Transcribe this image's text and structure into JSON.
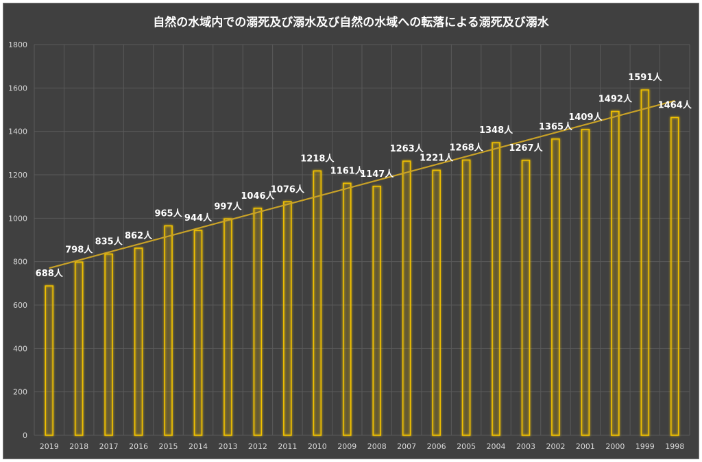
{
  "chart_data": {
    "type": "bar",
    "title": "自然の水域内での溺死及び溺水及び自然の水域への転落による溺死及び溺水",
    "xlabel": "",
    "ylabel": "",
    "ylim": [
      0,
      1800
    ],
    "yticks": [
      0,
      200,
      400,
      600,
      800,
      1000,
      1200,
      1400,
      1600,
      1800
    ],
    "grid": true,
    "trendline": "linear",
    "label_suffix": "人",
    "colors": {
      "background": "#404040",
      "bar_edge": "#f2c200",
      "trend": "#c9a227",
      "grid": "#5a5a5a"
    },
    "categories": [
      "2019",
      "2018",
      "2017",
      "2016",
      "2015",
      "2014",
      "2013",
      "2012",
      "2011",
      "2010",
      "2009",
      "2008",
      "2007",
      "2006",
      "2005",
      "2004",
      "2003",
      "2002",
      "2001",
      "2000",
      "1999",
      "1998"
    ],
    "values": [
      688,
      798,
      835,
      862,
      965,
      944,
      997,
      1046,
      1076,
      1218,
      1161,
      1147,
      1263,
      1221,
      1268,
      1348,
      1267,
      1365,
      1409,
      1492,
      1591,
      1464
    ],
    "data_labels": [
      "688人",
      "798人",
      "835人",
      "862人",
      "965人",
      "944人",
      "997人",
      "1046人",
      "1076人",
      "1218人",
      "1161人",
      "1147人",
      "1263人",
      "1221人",
      "1268人",
      "1348人",
      "1267人",
      "1365人",
      "1409人",
      "1492人",
      "1591人",
      "1464人"
    ]
  }
}
